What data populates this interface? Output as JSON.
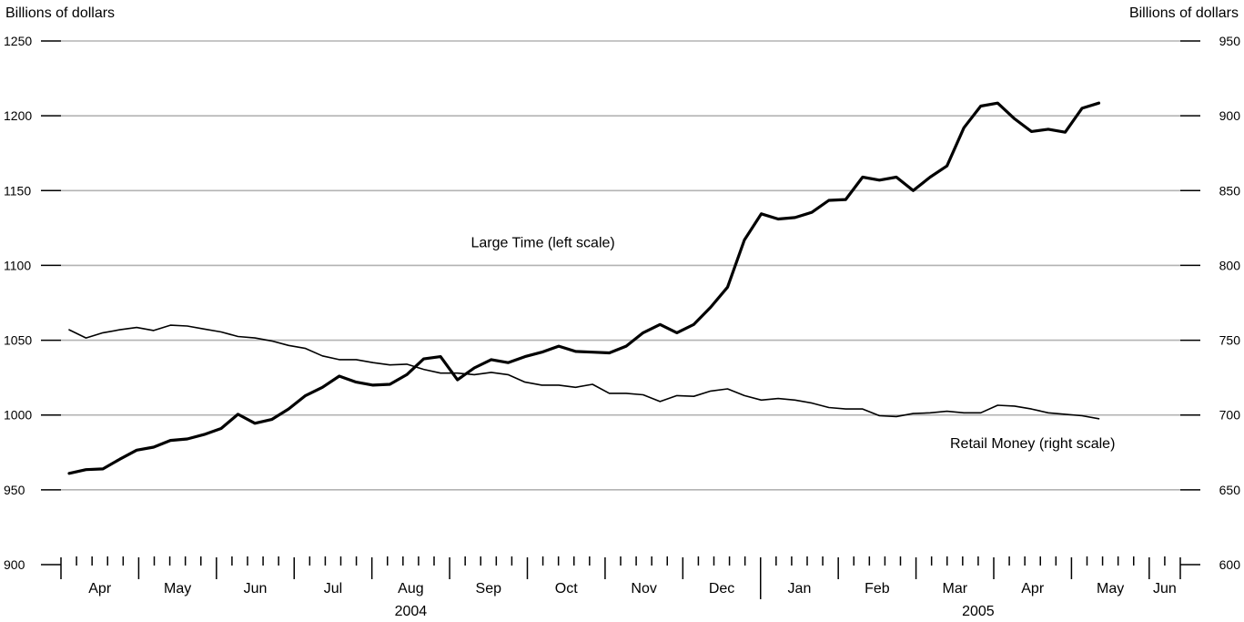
{
  "chart_data": {
    "type": "line",
    "title": "",
    "ylabel_left": "Billions of dollars",
    "ylabel_right": "Billions of dollars",
    "ylim_left": [
      900,
      1250
    ],
    "ylim_right": [
      600,
      950
    ],
    "yticks_left": [
      "900",
      "950",
      "1000",
      "1050",
      "1100",
      "1150",
      "1200",
      "1250"
    ],
    "yticks_right": [
      "600",
      "650",
      "700",
      "750",
      "800",
      "850",
      "900",
      "950"
    ],
    "grid": "horizontal",
    "x_weeks_range": [
      0,
      72
    ],
    "months": [
      {
        "label": "Apr",
        "start": 0,
        "end": 5
      },
      {
        "label": "May",
        "start": 5,
        "end": 10
      },
      {
        "label": "Jun",
        "start": 10,
        "end": 15
      },
      {
        "label": "Jul",
        "start": 15,
        "end": 20
      },
      {
        "label": "Aug",
        "start": 20,
        "end": 25
      },
      {
        "label": "Sep",
        "start": 25,
        "end": 30
      },
      {
        "label": "Oct",
        "start": 30,
        "end": 35
      },
      {
        "label": "Nov",
        "start": 35,
        "end": 40
      },
      {
        "label": "Dec",
        "start": 40,
        "end": 45
      },
      {
        "label": "Jan",
        "start": 45,
        "end": 50
      },
      {
        "label": "Feb",
        "start": 50,
        "end": 55
      },
      {
        "label": "Mar",
        "start": 55,
        "end": 60
      },
      {
        "label": "Apr",
        "start": 60,
        "end": 65
      },
      {
        "label": "May",
        "start": 65,
        "end": 70
      },
      {
        "label": "Jun",
        "start": 70,
        "end": 72
      }
    ],
    "years": [
      {
        "label": "2004",
        "center": 22.5
      },
      {
        "label": "2005",
        "center": 59
      }
    ],
    "year_divider_week": 45,
    "series": [
      {
        "name": "Large Time (left scale)",
        "axis": "left",
        "stroke_width": 3.2,
        "label_x_week": 31,
        "label_y_value": 1112,
        "values": [
          961,
          963.5,
          964,
          970.5,
          976.5,
          978.5,
          983,
          984,
          987,
          991,
          1000.5,
          994.5,
          997,
          1004,
          1013,
          1018.5,
          1026,
          1022,
          1020,
          1020.5,
          1027,
          1037.5,
          1039,
          1023.5,
          1031.5,
          1037,
          1035,
          1039,
          1042,
          1046,
          1042.5,
          1042,
          1041.5,
          1046,
          1055,
          1060.5,
          1055,
          1060.5,
          1072,
          1085.5,
          1117,
          1134.5,
          1131,
          1132,
          1135.5,
          1143.5,
          1144,
          1159,
          1157,
          1159,
          1150,
          1159,
          1166.5,
          1192,
          1206.5,
          1208.5,
          1198,
          1189.5,
          1191,
          1189,
          1205,
          1208.5
        ]
      },
      {
        "name": "Retail Money (right scale)",
        "axis": "right",
        "stroke_width": 1.6,
        "label_x_week": 62.5,
        "label_y_value": 978,
        "values": [
          757,
          751.5,
          755,
          757,
          758.5,
          756.5,
          760,
          759.5,
          757.5,
          755.5,
          752.5,
          751.5,
          749.5,
          746.5,
          744.5,
          739.5,
          737,
          737,
          735,
          733.5,
          734,
          730.5,
          728,
          728,
          727,
          728.5,
          727,
          722,
          720,
          720,
          718.5,
          720.5,
          714.5,
          714.5,
          713.5,
          709,
          713,
          712.5,
          716,
          717.5,
          713,
          710,
          711,
          710,
          708,
          705,
          704,
          704,
          699.5,
          699,
          701,
          701.5,
          702.5,
          701.5,
          701.5,
          706.5,
          706,
          704,
          701.5,
          700.5,
          699.5,
          697.5
        ]
      }
    ]
  }
}
